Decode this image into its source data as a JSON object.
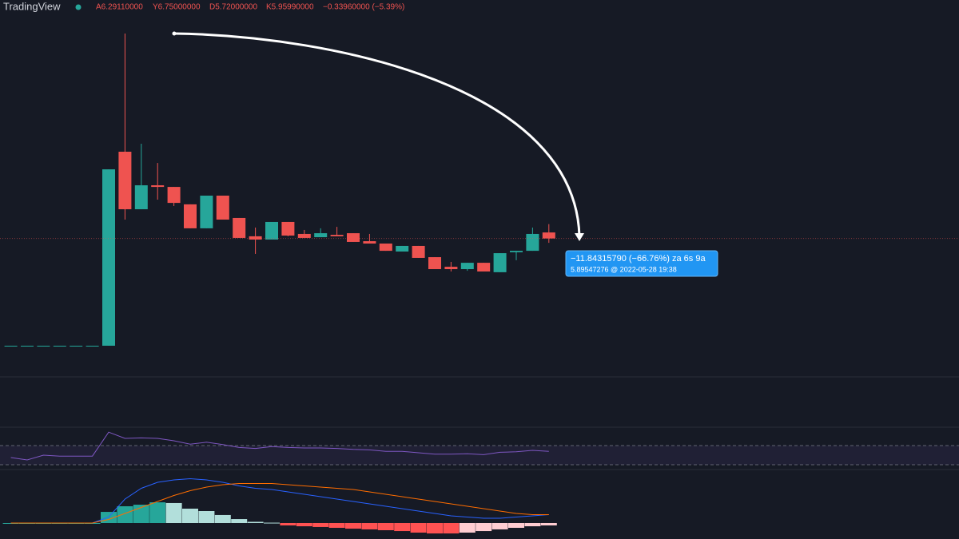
{
  "header": {
    "brand": "TradingView",
    "open": "A6.29110000",
    "high": "Y6.75000000",
    "low": "D5.72000000",
    "close": "K5.95990000",
    "change": "−0.33960000 (−5.39%)"
  },
  "tooltip": {
    "line1": "−11.84315790 (−66.76%) za 6s 9a",
    "line2": "5.89547276 @ 2022-05-28  19:38"
  },
  "chart_data": {
    "type": "candlestick",
    "up_color": "#26a69a",
    "down_color": "#ef5350",
    "ylim": [
      -1.58,
      19.1
    ],
    "candles": [
      {
        "open": 0.05,
        "high": 0.05,
        "low": 0.05,
        "close": 0.05
      },
      {
        "open": 0.05,
        "high": 0.05,
        "low": 0.05,
        "close": 0.05
      },
      {
        "open": 0.05,
        "high": 0.05,
        "low": 0.05,
        "close": 0.05
      },
      {
        "open": 0.05,
        "high": 0.05,
        "low": 0.05,
        "close": 0.05
      },
      {
        "open": 0.05,
        "high": 0.05,
        "low": 0.05,
        "close": 0.05
      },
      {
        "open": 0.05,
        "high": 0.05,
        "low": 0.05,
        "close": 0.05
      },
      {
        "open": 0.05,
        "high": 9.77,
        "low": 0.05,
        "close": 9.77
      },
      {
        "open": 10.74,
        "high": 17.25,
        "low": 7.0,
        "close": 7.57
      },
      {
        "open": 7.57,
        "high": 11.18,
        "low": 7.57,
        "close": 8.89
      },
      {
        "open": 8.89,
        "high": 10.12,
        "low": 8.1,
        "close": 8.8
      },
      {
        "open": 8.8,
        "high": 8.8,
        "low": 7.75,
        "close": 7.92
      },
      {
        "open": 7.84,
        "high": 7.84,
        "low": 6.52,
        "close": 6.52
      },
      {
        "open": 6.52,
        "high": 8.32,
        "low": 6.52,
        "close": 8.32
      },
      {
        "open": 8.32,
        "high": 8.32,
        "low": 7.0,
        "close": 7.0
      },
      {
        "open": 7.09,
        "high": 7.09,
        "low": 5.99,
        "close": 5.99
      },
      {
        "open": 6.08,
        "high": 6.56,
        "low": 5.11,
        "close": 5.9
      },
      {
        "open": 5.9,
        "high": 6.87,
        "low": 5.9,
        "close": 6.87
      },
      {
        "open": 6.87,
        "high": 6.87,
        "low": 6.08,
        "close": 6.12
      },
      {
        "open": 6.21,
        "high": 6.43,
        "low": 5.99,
        "close": 5.99
      },
      {
        "open": 6.03,
        "high": 6.52,
        "low": 6.03,
        "close": 6.25
      },
      {
        "open": 6.16,
        "high": 6.6,
        "low": 6.08,
        "close": 6.08
      },
      {
        "open": 6.25,
        "high": 6.25,
        "low": 5.77,
        "close": 5.77
      },
      {
        "open": 5.81,
        "high": 6.21,
        "low": 5.68,
        "close": 5.68
      },
      {
        "open": 5.68,
        "high": 5.68,
        "low": 5.28,
        "close": 5.28
      },
      {
        "open": 5.24,
        "high": 5.55,
        "low": 5.24,
        "close": 5.55
      },
      {
        "open": 5.55,
        "high": 5.55,
        "low": 4.89,
        "close": 4.89
      },
      {
        "open": 4.93,
        "high": 4.93,
        "low": 4.27,
        "close": 4.27
      },
      {
        "open": 4.4,
        "high": 4.67,
        "low": 4.14,
        "close": 4.27
      },
      {
        "open": 4.27,
        "high": 4.62,
        "low": 4.18,
        "close": 4.62
      },
      {
        "open": 4.62,
        "high": 4.62,
        "low": 4.14,
        "close": 4.14
      },
      {
        "open": 4.1,
        "high": 5.15,
        "low": 4.1,
        "close": 5.15
      },
      {
        "open": 5.2,
        "high": 5.28,
        "low": 4.76,
        "close": 5.28
      },
      {
        "open": 5.28,
        "high": 6.56,
        "low": 5.28,
        "close": 6.21
      },
      {
        "open": 6.2911,
        "high": 6.75,
        "low": 5.72,
        "close": 5.9599
      }
    ],
    "rsi": {
      "color": "#7e57c2",
      "ylim": [
        0,
        100
      ],
      "band": [
        30,
        70
      ],
      "values": [
        45,
        40,
        50,
        48,
        48,
        48,
        98,
        85,
        86,
        85,
        80,
        73,
        77,
        72,
        66,
        64,
        68,
        66,
        65,
        65,
        64,
        62,
        61,
        58,
        58,
        55,
        52,
        52,
        53,
        51,
        56,
        57,
        60,
        58
      ]
    },
    "macd": {
      "ylim": [
        -1,
        4
      ],
      "macd_color": "#2962ff",
      "signal_color": "#ff6d00",
      "histogram": [
        0,
        0,
        0,
        0,
        0,
        0,
        0.93,
        1.4,
        1.53,
        1.73,
        1.67,
        1.2,
        1.0,
        0.67,
        0.33,
        0.1,
        0.03,
        -0.2,
        -0.27,
        -0.33,
        -0.4,
        -0.47,
        -0.53,
        -0.6,
        -0.67,
        -0.8,
        -0.87,
        -0.87,
        -0.8,
        -0.67,
        -0.53,
        -0.4,
        -0.27,
        -0.2
      ],
      "macd": [
        0,
        0,
        0,
        0,
        0,
        0,
        0.5,
        2.0,
        2.9,
        3.4,
        3.6,
        3.7,
        3.6,
        3.4,
        3.1,
        2.9,
        2.8,
        2.6,
        2.4,
        2.2,
        2.0,
        1.8,
        1.6,
        1.4,
        1.2,
        1.0,
        0.8,
        0.6,
        0.5,
        0.4,
        0.4,
        0.5,
        0.6,
        0.7
      ],
      "signal": [
        0,
        0,
        0,
        0,
        0,
        0,
        0.3,
        0.8,
        1.3,
        1.8,
        2.3,
        2.7,
        3.0,
        3.2,
        3.3,
        3.3,
        3.3,
        3.2,
        3.1,
        3.0,
        2.9,
        2.8,
        2.6,
        2.4,
        2.2,
        2.0,
        1.8,
        1.6,
        1.4,
        1.2,
        1.0,
        0.8,
        0.7,
        0.7
      ]
    }
  }
}
